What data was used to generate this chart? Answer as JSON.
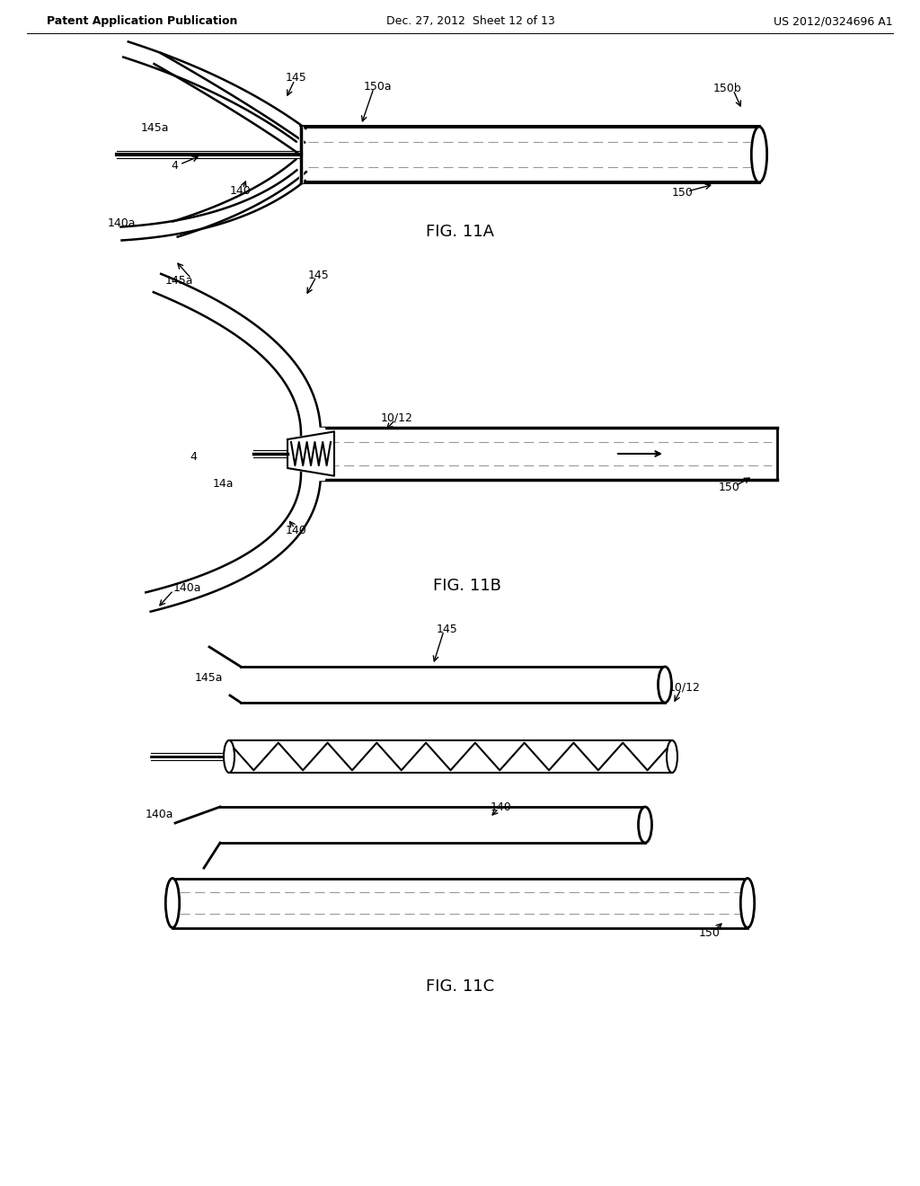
{
  "header_left": "Patent Application Publication",
  "header_mid": "Dec. 27, 2012  Sheet 12 of 13",
  "header_right": "US 2012/0324696 A1",
  "fig_labels": [
    "FIG. 11A",
    "FIG. 11B",
    "FIG. 11C"
  ],
  "background": "#ffffff",
  "line_color": "#000000",
  "mid_gray": "#999999"
}
